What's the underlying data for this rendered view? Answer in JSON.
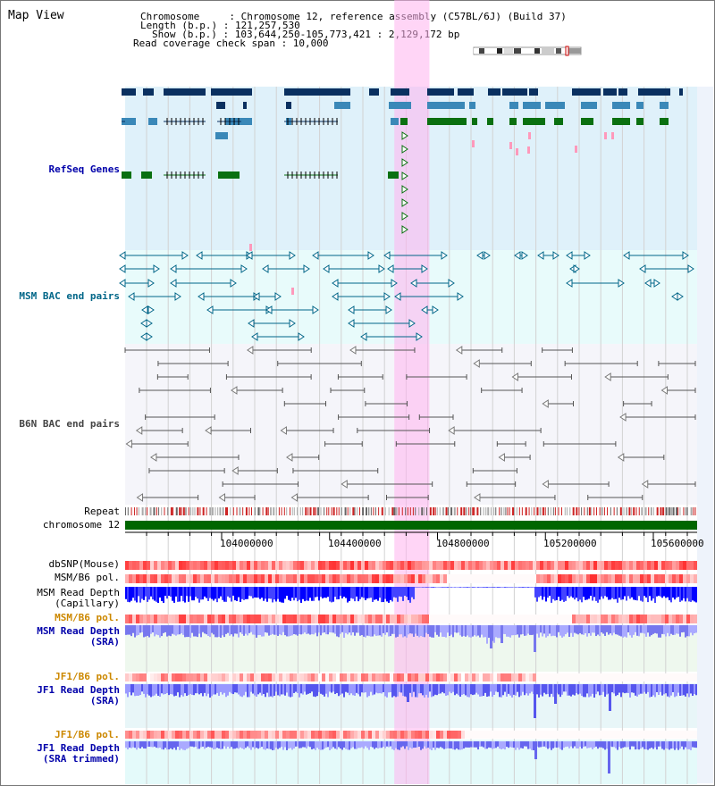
{
  "view_title": "Map View",
  "info": {
    "chromosome_line": "Chromosome     : Chromosome 12, reference assembly (C57BL/6J) (Build 37)",
    "length_line": "Length (b.p.) : 121,257,530",
    "show_line": "Show (b.p.) : 103,644,250-105,773,421 : 2,129,172 bp",
    "coverage_line": "Read coverage check span : 10,000"
  },
  "tracks": {
    "refseq": {
      "label": "RefSeq Genes",
      "color": "#0000aa"
    },
    "msm_bac": {
      "label": "MSM BAC end pairs",
      "color": "#006688"
    },
    "b6n_bac": {
      "label": "B6N BAC end pairs",
      "color": "#444444"
    },
    "repeat": {
      "label": "Repeat",
      "color": "#000000"
    },
    "chromosome": {
      "label": "chromosome 12",
      "color": "#000000"
    },
    "dbsnp": {
      "label": "dbSNP(Mouse)",
      "color": "#000000"
    },
    "msm_b6_pol": {
      "label": "MSM/B6 pol.",
      "color": "#000000"
    },
    "msm_depth_cap": {
      "label": "MSM Read Depth\n(Capillary)",
      "color": "#000000"
    },
    "msm_b6_pol2": {
      "label": "MSM/B6 pol.",
      "color": "#cc8800"
    },
    "msm_depth_sra": {
      "label": "MSM Read Depth\n(SRA)",
      "color": "#0000aa"
    },
    "jf1_b6_pol": {
      "label": "JF1/B6 pol.",
      "color": "#cc8800"
    },
    "jf1_depth_sra": {
      "label": "JF1 Read Depth\n(SRA)",
      "color": "#0000aa"
    },
    "jf1_b6_pol2": {
      "label": "JF1/B6 pol.",
      "color": "#cc8800"
    },
    "jf1_depth_trim": {
      "label": "JF1 Read Depth\n(SRA trimmed)",
      "color": "#0000aa"
    }
  },
  "axis": {
    "ticks": [
      "104000000",
      "104400000",
      "104800000",
      "105200000",
      "105600000"
    ],
    "tick_values": [
      104000000,
      104400000,
      104800000,
      105200000,
      105600000
    ],
    "range": [
      103644250,
      105773421
    ]
  },
  "highlight": {
    "range": [
      104640000,
      104770000
    ],
    "color": "#ffb3ee"
  },
  "colors": {
    "gene_dark": "#0a3060",
    "gene_mid": "#3a88b8",
    "gene_green": "#0a7010",
    "gene_pink": "#ff99bb",
    "msm_pair": "#006688",
    "b6n_pair": "#555555",
    "refseq_bg": "#dff1fa",
    "msm_bg": "#e8fbfb",
    "b6n_bg": "#f5f5fa",
    "chrom_bar": "#006600",
    "depth_blue": "#0000ff",
    "depth_light": "#8888ff"
  }
}
